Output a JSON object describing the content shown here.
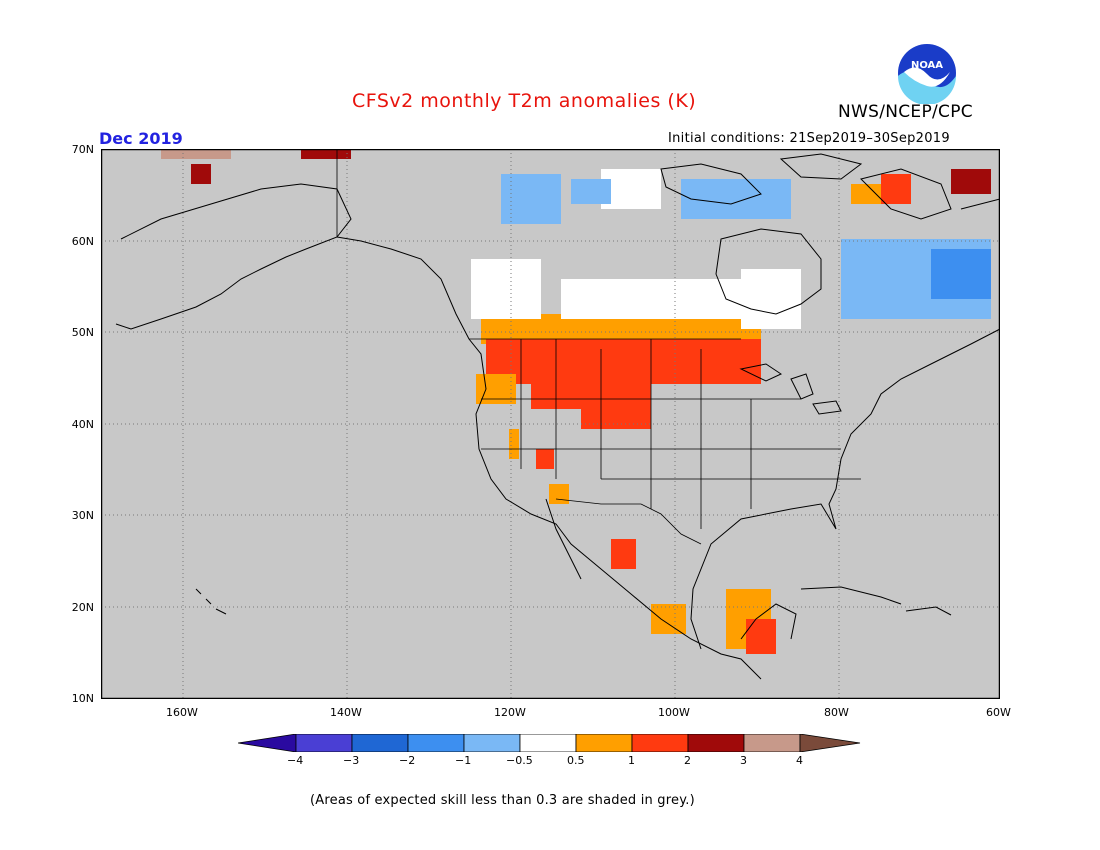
{
  "title": "CFSv2 monthly T2m anomalies (K)",
  "agency": "NWS/NCEP/CPC",
  "logo_text": "NOAA",
  "forecast_month": "Dec 2019",
  "initial_conditions": "Initial conditions: 21Sep2019–30Sep2019",
  "latitude_labels": [
    "70N",
    "60N",
    "50N",
    "40N",
    "30N",
    "20N",
    "10N"
  ],
  "longitude_labels": [
    "160W",
    "140W",
    "120W",
    "100W",
    "80W",
    "60W"
  ],
  "colorbar": {
    "labels": [
      "−4",
      "−3",
      "−2",
      "−1",
      "−0.5",
      "0.5",
      "1",
      "2",
      "3",
      "4"
    ],
    "colors": [
      "#2a0aa0",
      "#4a3fd4",
      "#1f67d4",
      "#3d8ff0",
      "#7ab8f5",
      "#ffffff",
      "#ff9f00",
      "#ff3a10",
      "#a00a0a",
      "#c7998a",
      "#7a4a3a"
    ]
  },
  "footnote": "(Areas of expected skill less than 0.3 are shaded in grey.)",
  "colors": {
    "title": "#e8130c",
    "month": "#2222e0",
    "skill_grey": "#c8c8c8",
    "map_border": "#000000"
  }
}
